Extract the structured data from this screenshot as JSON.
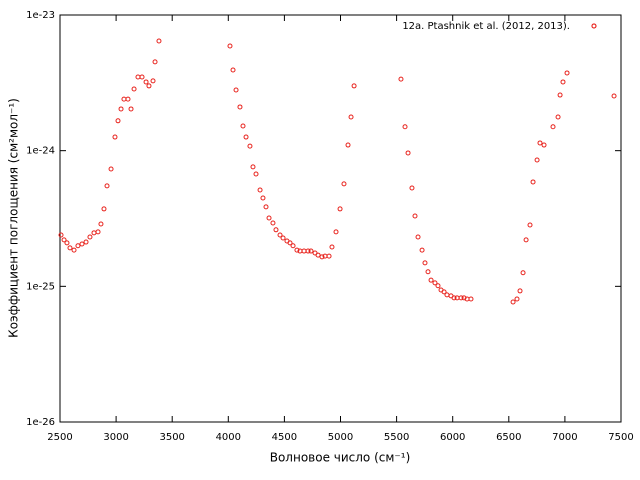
{
  "chart_data": {
    "type": "scatter",
    "xlabel": "Волновое число (см⁻¹)",
    "ylabel": "Коэффициент поглощения (см²мол⁻¹)",
    "xlim": [
      2500,
      7500
    ],
    "xticks": [
      2500,
      3000,
      3500,
      4000,
      4500,
      5000,
      5500,
      6000,
      6500,
      7000,
      7500
    ],
    "ylim": [
      1e-26,
      1e-23
    ],
    "yticks": [
      1e-26,
      1e-25,
      1e-24,
      1e-23
    ],
    "log_y": true,
    "legend": "top right",
    "x": [
      2509,
      2536,
      2562,
      2589,
      2625,
      2660,
      2696,
      2732,
      2767,
      2803,
      2839,
      2865,
      2892,
      2919,
      2955,
      2990,
      3017,
      3044,
      3070,
      3106,
      3133,
      3160,
      3195,
      3231,
      3267,
      3293,
      3329,
      3347,
      3382,
      4015,
      4042,
      4069,
      4104,
      4131,
      4158,
      4193,
      4220,
      4247,
      4283,
      4309,
      4336,
      4363,
      4398,
      4425,
      4461,
      4488,
      4523,
      4550,
      4577,
      4612,
      4639,
      4675,
      4711,
      4737,
      4773,
      4800,
      4835,
      4862,
      4898,
      4924,
      4960,
      4996,
      5031,
      5067,
      5094,
      5121,
      5539,
      5575,
      5602,
      5637,
      5664,
      5691,
      5727,
      5753,
      5780,
      5807,
      5842,
      5869,
      5896,
      5923,
      5949,
      5985,
      6012,
      6039,
      6075,
      6101,
      6128,
      6163,
      6538,
      6573,
      6600,
      6627,
      6654,
      6689,
      6716,
      6752,
      6778,
      6814,
      6894,
      6939,
      6957,
      6983,
      7019,
      7259,
      7438
    ],
    "series": [
      {
        "name": "12a. Ptashnik et al. (2012, 2013).",
        "color": "#e8221c",
        "values": [
          2.39e-25,
          2.2e-25,
          2.09e-25,
          1.92e-25,
          1.85e-25,
          1.99e-25,
          2.05e-25,
          2.12e-25,
          2.31e-25,
          2.48e-25,
          2.52e-25,
          2.88e-25,
          3.72e-25,
          5.5e-25,
          7.33e-25,
          1.26e-24,
          1.66e-24,
          2.03e-24,
          2.4e-24,
          2.4e-24,
          2.03e-24,
          2.85e-24,
          3.49e-24,
          3.49e-24,
          3.21e-24,
          3e-24,
          3.27e-24,
          4.51e-24,
          6.43e-24,
          5.91e-24,
          3.93e-24,
          2.8e-24,
          2.1e-24,
          1.52e-24,
          1.26e-24,
          1.08e-24,
          7.59e-25,
          6.73e-25,
          5.13e-25,
          4.48e-25,
          3.85e-25,
          3.19e-25,
          2.93e-25,
          2.61e-25,
          2.39e-25,
          2.27e-25,
          2.16e-25,
          2.09e-25,
          1.99e-25,
          1.85e-25,
          1.82e-25,
          1.82e-25,
          1.82e-25,
          1.82e-25,
          1.76e-25,
          1.7e-25,
          1.65e-25,
          1.67e-25,
          1.67e-25,
          1.95e-25,
          2.52e-25,
          3.72e-25,
          5.69e-25,
          1.1e-24,
          1.77e-24,
          3e-24,
          3.37e-24,
          1.5e-24,
          9.62e-25,
          5.31e-25,
          3.3e-25,
          2.31e-25,
          1.85e-25,
          1.49e-25,
          1.28e-25,
          1.11e-25,
          1.06e-25,
          1.01e-25,
          9.4e-26,
          9.1e-26,
          8.65e-26,
          8.5e-26,
          8.22e-26,
          8.22e-26,
          8.22e-26,
          8.22e-26,
          8.07e-26,
          8.07e-26,
          7.67e-26,
          8.07e-26,
          9.25e-26,
          1.26e-25,
          2.2e-25,
          2.83e-25,
          5.88e-25,
          8.54e-25,
          1.14e-24,
          1.1e-24,
          1.5e-24,
          1.77e-24,
          2.57e-24,
          3.21e-24,
          3.74e-24,
          8.3e-24,
          2.53e-24
        ]
      }
    ]
  }
}
